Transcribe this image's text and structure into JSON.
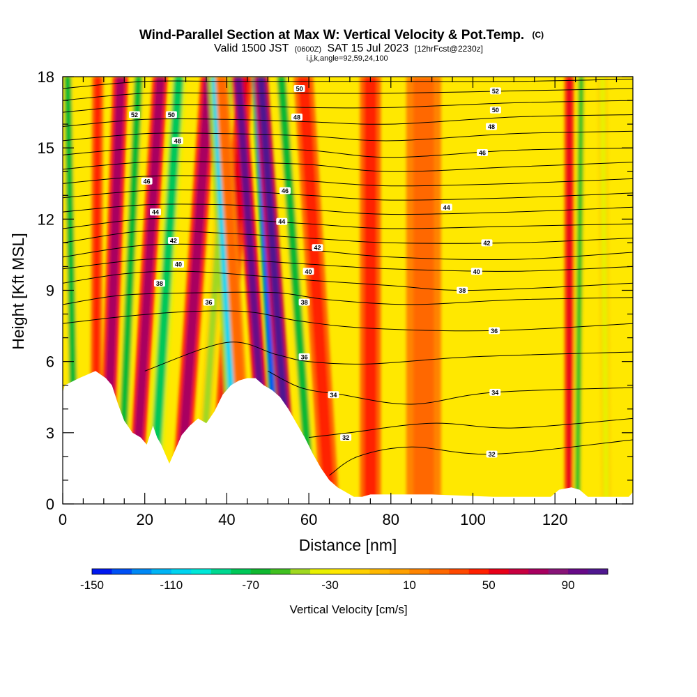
{
  "chart_data": {
    "type": "heatmap",
    "title": "Wind-Parallel Section at Max W: Vertical Velocity & Pot.Temp.",
    "title_mark": "(C)",
    "subtitle": {
      "valid_prefix": "Valid 1500 JST",
      "utc": "(0600Z)",
      "date": "SAT 15 Jul 2023",
      "forecast": "[12hrFcst@2230z]"
    },
    "indices": "i,j,k,angle=92,59,24,100",
    "xlabel": "Distance [nm]",
    "ylabel": "Height [Kft MSL]",
    "xlim": [
      0,
      139
    ],
    "ylim": [
      0,
      18
    ],
    "x_ticks": [
      {
        "value": 0,
        "label": "0"
      },
      {
        "value": 20,
        "label": "20"
      },
      {
        "value": 40,
        "label": "40"
      },
      {
        "value": 60,
        "label": "60"
      },
      {
        "value": 80,
        "label": "80"
      },
      {
        "value": 100,
        "label": "100"
      },
      {
        "value": 120,
        "label": "120"
      }
    ],
    "y_ticks": [
      {
        "value": 0,
        "label": "0"
      },
      {
        "value": 3,
        "label": "3"
      },
      {
        "value": 6,
        "label": "6"
      },
      {
        "value": 9,
        "label": "9"
      },
      {
        "value": 12,
        "label": "12"
      },
      {
        "value": 15,
        "label": "15"
      },
      {
        "value": 18,
        "label": "18"
      }
    ],
    "colorbar": {
      "label": "Vertical Velocity [cm/s]",
      "min": -150,
      "max": 110,
      "step": 10,
      "colors": [
        "#0018f0",
        "#0050f5",
        "#0088f5",
        "#00b4f5",
        "#00d4f0",
        "#00e8d8",
        "#00d890",
        "#00c858",
        "#10b830",
        "#40c020",
        "#a0d820",
        "#e8f000",
        "#ffe800",
        "#ffd000",
        "#ffb800",
        "#ffa000",
        "#ff8400",
        "#ff6800",
        "#ff4800",
        "#ff2000",
        "#e80018",
        "#c80040",
        "#a80060",
        "#881478",
        "#680a88",
        "#501890"
      ],
      "ticks": [
        {
          "value": -150,
          "label": "-150"
        },
        {
          "value": -110,
          "label": "-110"
        },
        {
          "value": -70,
          "label": "-70"
        },
        {
          "value": -30,
          "label": "-30"
        },
        {
          "value": 10,
          "label": "10"
        },
        {
          "value": 50,
          "label": "50"
        },
        {
          "value": 90,
          "label": "90"
        }
      ]
    },
    "contour_labels": [
      {
        "text": "52",
        "x": 17.5,
        "y": 16.4
      },
      {
        "text": "50",
        "x": 26.5,
        "y": 16.4
      },
      {
        "text": "48",
        "x": 28.0,
        "y": 15.3
      },
      {
        "text": "46",
        "x": 20.5,
        "y": 13.6
      },
      {
        "text": "44",
        "x": 22.6,
        "y": 12.3
      },
      {
        "text": "42",
        "x": 27.0,
        "y": 11.1
      },
      {
        "text": "40",
        "x": 28.2,
        "y": 10.1
      },
      {
        "text": "38",
        "x": 23.6,
        "y": 9.3
      },
      {
        "text": "36",
        "x": 35.6,
        "y": 8.5
      },
      {
        "text": "50",
        "x": 57.7,
        "y": 17.5
      },
      {
        "text": "48",
        "x": 57.1,
        "y": 16.3
      },
      {
        "text": "46",
        "x": 54.2,
        "y": 13.2
      },
      {
        "text": "44",
        "x": 53.4,
        "y": 11.9
      },
      {
        "text": "42",
        "x": 62.1,
        "y": 10.8
      },
      {
        "text": "40",
        "x": 59.9,
        "y": 9.8
      },
      {
        "text": "38",
        "x": 58.9,
        "y": 8.5
      },
      {
        "text": "36",
        "x": 58.9,
        "y": 6.2
      },
      {
        "text": "34",
        "x": 66.0,
        "y": 4.6
      },
      {
        "text": "32",
        "x": 69.0,
        "y": 2.8
      },
      {
        "text": "52",
        "x": 105.5,
        "y": 17.4
      },
      {
        "text": "50",
        "x": 105.5,
        "y": 16.6
      },
      {
        "text": "48",
        "x": 104.5,
        "y": 15.9
      },
      {
        "text": "46",
        "x": 102.3,
        "y": 14.8
      },
      {
        "text": "44",
        "x": 93.6,
        "y": 12.5
      },
      {
        "text": "42",
        "x": 103.4,
        "y": 11.0
      },
      {
        "text": "40",
        "x": 100.9,
        "y": 9.8
      },
      {
        "text": "38",
        "x": 97.4,
        "y": 9.0
      },
      {
        "text": "36",
        "x": 105.2,
        "y": 7.3
      },
      {
        "text": "34",
        "x": 105.4,
        "y": 4.7
      },
      {
        "text": "32",
        "x": 104.6,
        "y": 2.1
      }
    ],
    "terrain": [
      [
        0,
        4.7
      ],
      [
        0.5,
        5.0
      ],
      [
        4,
        5.3
      ],
      [
        8,
        5.6
      ],
      [
        10.5,
        5.3
      ],
      [
        12,
        5.0
      ],
      [
        13.5,
        4.2
      ],
      [
        15,
        3.5
      ],
      [
        17,
        3.0
      ],
      [
        19,
        2.8
      ],
      [
        20.5,
        2.5
      ],
      [
        22,
        3.3
      ],
      [
        23,
        2.8
      ],
      [
        24,
        2.5
      ],
      [
        25,
        2.1
      ],
      [
        26,
        1.7
      ],
      [
        27,
        2.1
      ],
      [
        28,
        2.5
      ],
      [
        29,
        2.9
      ],
      [
        31,
        3.3
      ],
      [
        33,
        3.6
      ],
      [
        35,
        3.4
      ],
      [
        37,
        3.9
      ],
      [
        39,
        4.6
      ],
      [
        41,
        5.0
      ],
      [
        43,
        5.2
      ],
      [
        45,
        5.3
      ],
      [
        47,
        5.3
      ],
      [
        49,
        5.0
      ],
      [
        51,
        4.8
      ],
      [
        53,
        4.5
      ],
      [
        55,
        4.0
      ],
      [
        57,
        3.4
      ],
      [
        59,
        2.8
      ],
      [
        61,
        2.1
      ],
      [
        63,
        1.5
      ],
      [
        65,
        1.0
      ],
      [
        67,
        0.7
      ],
      [
        69,
        0.5
      ],
      [
        71,
        0.3
      ],
      [
        73,
        0.3
      ],
      [
        75,
        0.4
      ],
      [
        90,
        0.4
      ],
      [
        105,
        0.3
      ],
      [
        119,
        0.3
      ],
      [
        121,
        0.6
      ],
      [
        124,
        0.7
      ],
      [
        126,
        0.6
      ],
      [
        128,
        0.3
      ],
      [
        138,
        0.3
      ],
      [
        139,
        0.5
      ]
    ],
    "isentropes": [
      {
        "theta": 32,
        "points": [
          [
            65,
            1.2
          ],
          [
            72,
            2.0
          ],
          [
            85,
            2.4
          ],
          [
            105,
            2.1
          ],
          [
            139,
            2.7
          ]
        ]
      },
      {
        "theta": 33,
        "points": [
          [
            60,
            2.8
          ],
          [
            70,
            3.0
          ],
          [
            90,
            3.4
          ],
          [
            110,
            3.2
          ],
          [
            139,
            3.6
          ]
        ]
      },
      {
        "theta": 34,
        "points": [
          [
            50,
            5.6
          ],
          [
            58,
            4.9
          ],
          [
            68,
            4.6
          ],
          [
            85,
            4.2
          ],
          [
            105,
            4.7
          ],
          [
            139,
            4.9
          ]
        ]
      },
      {
        "theta": 35,
        "points": [
          [
            20,
            5.6
          ],
          [
            40,
            6.8
          ],
          [
            52,
            6.3
          ],
          [
            60,
            6.0
          ],
          [
            75,
            5.9
          ],
          [
            100,
            6.2
          ],
          [
            139,
            6.4
          ]
        ]
      },
      {
        "theta": 36,
        "points": [
          [
            0,
            7.6
          ],
          [
            15,
            7.9
          ],
          [
            30,
            8.1
          ],
          [
            45,
            8.1
          ],
          [
            58,
            7.7
          ],
          [
            75,
            7.4
          ],
          [
            105,
            7.3
          ],
          [
            139,
            7.6
          ]
        ]
      },
      {
        "theta": 37,
        "points": [
          [
            0,
            8.4
          ],
          [
            15,
            8.8
          ],
          [
            35,
            8.9
          ],
          [
            52,
            8.9
          ],
          [
            65,
            8.6
          ],
          [
            85,
            8.4
          ],
          [
            110,
            8.6
          ],
          [
            139,
            8.7
          ]
        ]
      },
      {
        "theta": 38,
        "points": [
          [
            0,
            9.3
          ],
          [
            15,
            9.7
          ],
          [
            30,
            9.8
          ],
          [
            48,
            9.6
          ],
          [
            62,
            9.4
          ],
          [
            80,
            9.2
          ],
          [
            100,
            9.0
          ],
          [
            139,
            9.3
          ]
        ]
      },
      {
        "theta": 39,
        "points": [
          [
            0,
            9.9
          ],
          [
            20,
            10.3
          ],
          [
            40,
            10.3
          ],
          [
            60,
            10.1
          ],
          [
            80,
            9.9
          ],
          [
            110,
            9.8
          ],
          [
            139,
            10.0
          ]
        ]
      },
      {
        "theta": 40,
        "points": [
          [
            0,
            10.4
          ],
          [
            20,
            10.9
          ],
          [
            40,
            10.9
          ],
          [
            60,
            10.7
          ],
          [
            80,
            10.4
          ],
          [
            110,
            10.3
          ],
          [
            139,
            10.6
          ]
        ]
      },
      {
        "theta": 41,
        "points": [
          [
            0,
            11.0
          ],
          [
            20,
            11.5
          ],
          [
            40,
            11.4
          ],
          [
            60,
            11.2
          ],
          [
            80,
            11.0
          ],
          [
            110,
            11.0
          ],
          [
            139,
            11.2
          ]
        ]
      },
      {
        "theta": 42,
        "points": [
          [
            0,
            11.6
          ],
          [
            20,
            12.0
          ],
          [
            40,
            12.0
          ],
          [
            60,
            11.8
          ],
          [
            80,
            11.6
          ],
          [
            110,
            11.7
          ],
          [
            139,
            11.8
          ]
        ]
      },
      {
        "theta": 43,
        "points": [
          [
            0,
            12.3
          ],
          [
            20,
            12.6
          ],
          [
            40,
            12.6
          ],
          [
            60,
            12.4
          ],
          [
            80,
            12.2
          ],
          [
            110,
            12.3
          ],
          [
            139,
            12.5
          ]
        ]
      },
      {
        "theta": 44,
        "points": [
          [
            0,
            12.9
          ],
          [
            20,
            13.2
          ],
          [
            40,
            13.2
          ],
          [
            60,
            13.0
          ],
          [
            80,
            12.8
          ],
          [
            110,
            12.9
          ],
          [
            139,
            13.1
          ]
        ]
      },
      {
        "theta": 45,
        "points": [
          [
            0,
            13.5
          ],
          [
            20,
            13.8
          ],
          [
            40,
            13.8
          ],
          [
            60,
            13.6
          ],
          [
            80,
            13.4
          ],
          [
            110,
            13.5
          ],
          [
            139,
            13.7
          ]
        ]
      },
      {
        "theta": 46,
        "points": [
          [
            0,
            14.1
          ],
          [
            20,
            14.4
          ],
          [
            40,
            14.4
          ],
          [
            60,
            14.3
          ],
          [
            80,
            14.0
          ],
          [
            110,
            14.2
          ],
          [
            139,
            14.4
          ]
        ]
      },
      {
        "theta": 47,
        "points": [
          [
            0,
            14.7
          ],
          [
            20,
            15.0
          ],
          [
            40,
            15.0
          ],
          [
            60,
            14.9
          ],
          [
            80,
            14.6
          ],
          [
            110,
            14.9
          ],
          [
            139,
            15.0
          ]
        ]
      },
      {
        "theta": 48,
        "points": [
          [
            0,
            15.3
          ],
          [
            20,
            15.6
          ],
          [
            40,
            15.6
          ],
          [
            60,
            15.5
          ],
          [
            80,
            15.3
          ],
          [
            110,
            15.6
          ],
          [
            139,
            15.7
          ]
        ]
      },
      {
        "theta": 49,
        "points": [
          [
            0,
            15.9
          ],
          [
            20,
            16.2
          ],
          [
            40,
            16.2
          ],
          [
            60,
            16.1
          ],
          [
            80,
            16.0
          ],
          [
            110,
            16.3
          ],
          [
            139,
            16.4
          ]
        ]
      },
      {
        "theta": 50,
        "points": [
          [
            0,
            16.5
          ],
          [
            20,
            16.8
          ],
          [
            40,
            16.8
          ],
          [
            60,
            16.7
          ],
          [
            80,
            16.7
          ],
          [
            110,
            16.9
          ],
          [
            139,
            17.0
          ]
        ]
      },
      {
        "theta": 51,
        "points": [
          [
            0,
            17.0
          ],
          [
            20,
            17.3
          ],
          [
            40,
            17.3
          ],
          [
            60,
            17.3
          ],
          [
            80,
            17.3
          ],
          [
            110,
            17.4
          ],
          [
            139,
            17.5
          ]
        ]
      },
      {
        "theta": 52,
        "points": [
          [
            0,
            17.5
          ],
          [
            20,
            17.8
          ],
          [
            40,
            17.8
          ],
          [
            60,
            17.8
          ],
          [
            80,
            17.8
          ],
          [
            110,
            17.8
          ],
          [
            139,
            17.9
          ]
        ]
      }
    ],
    "velocity_features": [
      {
        "x": 3.0,
        "tilt": -0.1,
        "width": 1.8,
        "value": -70
      },
      {
        "x": 8.0,
        "tilt": 0.03,
        "width": 1.6,
        "value": 40
      },
      {
        "x": 10.5,
        "tilt": 0.2,
        "width": 2.2,
        "value": 70
      },
      {
        "x": 14.0,
        "tilt": 0.25,
        "width": 2.0,
        "value": -70
      },
      {
        "x": 17.5,
        "tilt": 0.35,
        "width": 2.2,
        "value": 70
      },
      {
        "x": 22.0,
        "tilt": 0.35,
        "width": 2.4,
        "value": -80
      },
      {
        "x": 28.5,
        "tilt": 0.4,
        "width": 2.4,
        "value": 70
      },
      {
        "x": 33.5,
        "tilt": 0.4,
        "width": 1.6,
        "value": -50
      },
      {
        "x": 38.0,
        "tilt": 0.35,
        "width": 2.4,
        "value": 50
      },
      {
        "x": 43.0,
        "tilt": -0.3,
        "width": 2.6,
        "value": -110
      },
      {
        "x": 45.0,
        "tilt": -0.35,
        "width": 1.8,
        "value": 20
      },
      {
        "x": 50.0,
        "tilt": -0.4,
        "width": 2.0,
        "value": 90
      },
      {
        "x": 52.5,
        "tilt": -0.3,
        "width": 1.2,
        "value": -140
      },
      {
        "x": 55.5,
        "tilt": -0.4,
        "width": 2.0,
        "value": 120
      },
      {
        "x": 60.5,
        "tilt": -0.4,
        "width": 2.2,
        "value": -70
      },
      {
        "x": 65.0,
        "tilt": -0.35,
        "width": 2.8,
        "value": 40
      },
      {
        "x": 75.0,
        "tilt": 0.0,
        "width": 3.0,
        "value": 40
      },
      {
        "x": 88.0,
        "tilt": 0.0,
        "width": 5.0,
        "value": 20
      },
      {
        "x": 123.5,
        "tilt": 0.0,
        "width": 1.4,
        "value": 50
      },
      {
        "x": 125.5,
        "tilt": 0.05,
        "width": 1.4,
        "value": -60
      },
      {
        "x": 132.5,
        "tilt": -0.05,
        "width": 1.4,
        "value": -40
      }
    ],
    "background_value": 10,
    "grid": false,
    "legend": "bottom"
  }
}
